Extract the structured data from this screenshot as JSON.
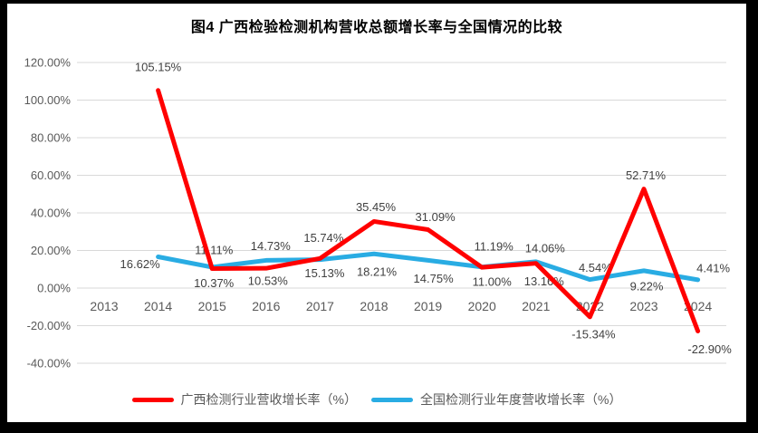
{
  "title": "图4 广西检验检测机构营收总额增长率与全国情况的比较",
  "colors": {
    "guangxi_line": "#ff0000",
    "national_line": "#29ace3",
    "gridline": "#d9d9d9",
    "axis_text": "#595959",
    "data_label_text": "#404040",
    "frame": "#000000",
    "background": "#ffffff"
  },
  "chart_data": {
    "type": "line",
    "title": "图4 广西检验检测机构营收总额增长率与全国情况的比较",
    "categories": [
      "2013",
      "2014",
      "2015",
      "2016",
      "2017",
      "2018",
      "2019",
      "2020",
      "2021",
      "2022",
      "2023",
      "2024"
    ],
    "series": [
      {
        "name": "广西检测行业营收增长率（%）",
        "color": "#ff0000",
        "start_index": 1,
        "values": [
          105.15,
          10.37,
          10.53,
          15.74,
          35.45,
          31.09,
          11.0,
          13.16,
          -15.34,
          52.71,
          -22.9
        ],
        "labels": [
          "105.15%",
          "10.37%",
          "10.53%",
          "15.74%",
          "35.45%",
          "31.09%",
          "11.00%",
          "13.16%",
          "-15.34%",
          "52.71%",
          "-22.90%"
        ]
      },
      {
        "name": "全国检测行业年度营收增长率（%）",
        "color": "#29ace3",
        "start_index": 1,
        "values": [
          16.62,
          11.11,
          14.73,
          15.13,
          18.21,
          14.75,
          11.19,
          14.06,
          4.54,
          9.22,
          4.41
        ],
        "labels": [
          "16.62%",
          "11.11%",
          "14.73%",
          "15.13%",
          "18.21%",
          "14.75%",
          "11.19%",
          "14.06%",
          "4.54%",
          "9.22%",
          "4.41%"
        ]
      }
    ],
    "ylim": [
      -40,
      120
    ],
    "ytick_step": 20,
    "yticks": [
      "120.00%",
      "100.00%",
      "80.00%",
      "60.00%",
      "40.00%",
      "20.00%",
      "0.00%",
      "-20.00%",
      "-40.00%"
    ],
    "grid": true,
    "data_labels": true,
    "legend_position": "bottom"
  },
  "legend": {
    "items": [
      {
        "label": "广西检测行业营收增长率（%）",
        "color": "#ff0000"
      },
      {
        "label": "全国检测行业年度营收增长率（%）",
        "color": "#29ace3"
      }
    ]
  }
}
